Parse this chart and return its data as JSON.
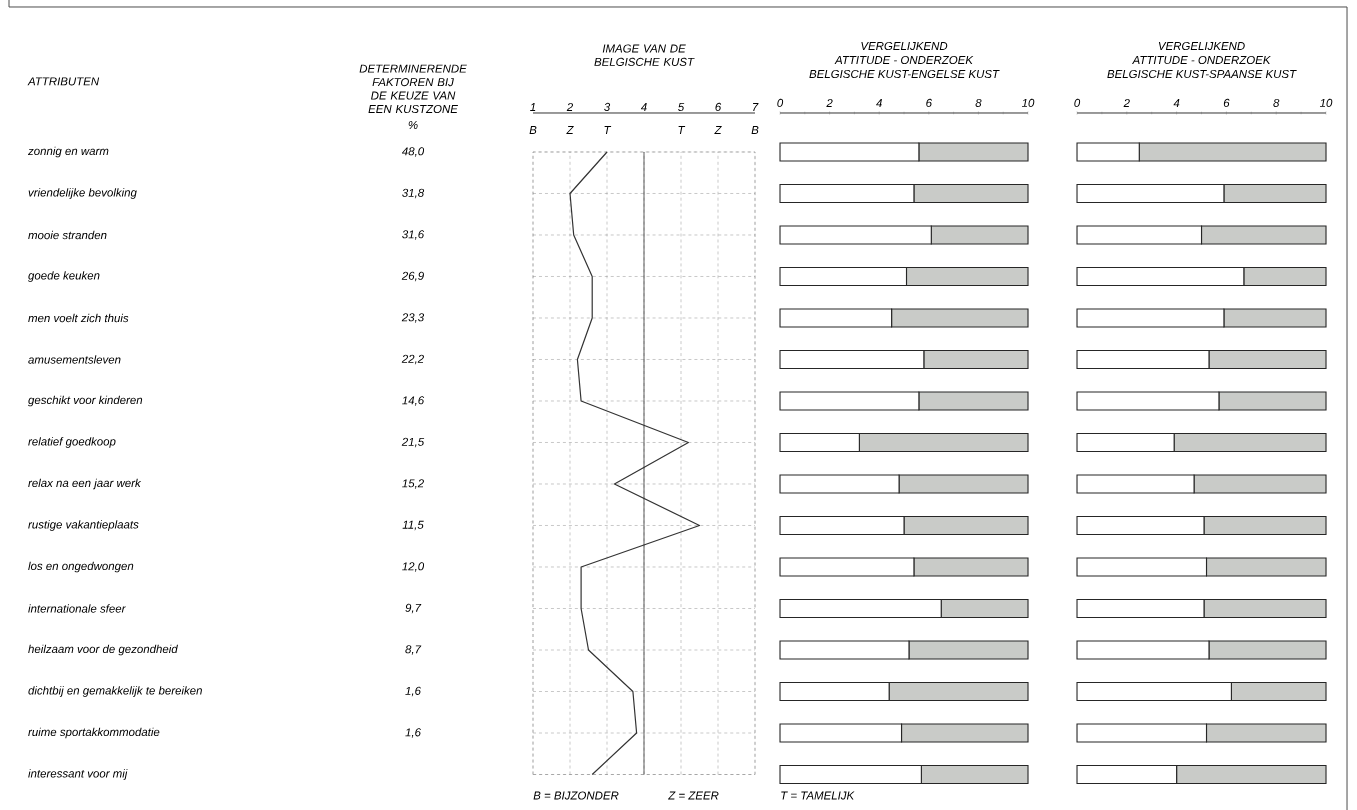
{
  "chart_data": [
    {
      "type": "other",
      "ylabel": "ATTRIBUTEN",
      "title": "DETERMINERENDE FAKTOREN BIJ DE KEUZE VAN EEN KUSTZONE",
      "xlabel": "%",
      "categories": [
        "zonnig en warm",
        "vriendelijke bevolking",
        "mooie stranden",
        "goede keuken",
        "men voelt zich thuis",
        "amusementsleven",
        "geschikt voor kinderen",
        "relatief goedkoop",
        "relax na een jaar werk",
        "rustige vakantieplaats",
        "los en ongedwongen",
        "internationale sfeer",
        "heilzaam voor de gezondheid",
        "dichtbij en gemakkelijk te bereiken",
        "ruime sportakkommodatie",
        "interessant voor mij"
      ],
      "values": [
        48.0,
        31.8,
        31.6,
        26.9,
        23.3,
        22.2,
        14.6,
        21.5,
        15.2,
        11.5,
        12.0,
        9.7,
        8.7,
        1.6,
        1.6,
        null
      ],
      "value_labels": [
        "48,0",
        "31,8",
        "31,6",
        "26,9",
        "23,3",
        "22,2",
        "14,6",
        "21,5",
        "15,2",
        "11,5",
        "12,0",
        "9,7",
        "8,7",
        "1,6",
        "1,6",
        null
      ]
    },
    {
      "type": "line",
      "orientation": "horizontal",
      "title": "IMAGE VAN DE BELGISCHE KUST",
      "categories": [
        null,
        null,
        null,
        null,
        null,
        null,
        null,
        null,
        null,
        null,
        null,
        null,
        null,
        null,
        null,
        null
      ],
      "values": [
        3.0,
        2.0,
        2.1,
        2.6,
        2.6,
        2.2,
        2.3,
        5.2,
        3.2,
        5.5,
        2.3,
        2.3,
        2.5,
        3.7,
        3.8,
        2.6
      ],
      "color": "#333333",
      "xlim": [
        1,
        7
      ],
      "xticks": [
        1,
        2,
        3,
        4,
        5,
        6,
        7
      ],
      "ref_lines": [
        {
          "axis": "x",
          "value": 4,
          "color": "#333333"
        }
      ],
      "grid": true,
      "tick_labels": "x",
      "annotations": [
        "B",
        "Z",
        "T",
        "T",
        "Z",
        "B",
        "B = BIJZONDER",
        "Z = ZEER",
        "T = TAMELIJK"
      ]
    },
    {
      "type": "bar",
      "orientation": "horizontal",
      "stacked": true,
      "title": "VERGELIJKEND",
      "subtitle": "ATTITUDE - ONDERZOEK",
      "xlabel": "BELGISCHE KUST-ENGELSE KUST",
      "categories": [
        null,
        null,
        null,
        null,
        null,
        null,
        null,
        null,
        null,
        null,
        null,
        null,
        null,
        null,
        null,
        null
      ],
      "series": [
        {
          "color": "#ffffff",
          "values": [
            5.6,
            5.4,
            6.1,
            5.1,
            4.5,
            5.8,
            5.6,
            3.2,
            4.8,
            5.0,
            5.4,
            6.5,
            5.2,
            4.4,
            4.9,
            5.7
          ]
        },
        {
          "color": "#c9cbc8",
          "values": [
            4.4,
            4.6,
            3.9,
            4.9,
            5.5,
            4.2,
            4.4,
            6.8,
            5.2,
            5.0,
            4.6,
            3.5,
            4.8,
            5.6,
            5.1,
            4.3
          ]
        }
      ],
      "xlim": [
        0,
        10
      ],
      "xticks": [
        0,
        2,
        4,
        6,
        8,
        10
      ],
      "tick_labels": "x"
    },
    {
      "type": "bar",
      "orientation": "horizontal",
      "stacked": true,
      "title": "VERGELIJKEND",
      "subtitle": "ATTITUDE - ONDERZOEK",
      "xlabel": "BELGISCHE KUST-SPAANSE KUST",
      "categories": [
        null,
        null,
        null,
        null,
        null,
        null,
        null,
        null,
        null,
        null,
        null,
        null,
        null,
        null,
        null,
        null
      ],
      "series": [
        {
          "color": "#ffffff",
          "values": [
            2.5,
            5.9,
            5.0,
            6.7,
            5.9,
            5.3,
            5.7,
            3.9,
            4.7,
            5.1,
            5.2,
            5.1,
            5.3,
            6.2,
            5.2,
            4.0
          ]
        },
        {
          "color": "#c9cbc8",
          "values": [
            7.5,
            4.1,
            5.0,
            3.3,
            4.1,
            4.7,
            4.3,
            6.1,
            5.3,
            4.9,
            4.8,
            4.9,
            4.7,
            3.8,
            4.8,
            6.0
          ]
        }
      ],
      "xlim": [
        0,
        10
      ],
      "xticks": [
        0,
        2,
        4,
        6,
        8,
        10
      ],
      "tick_labels": "x"
    }
  ]
}
